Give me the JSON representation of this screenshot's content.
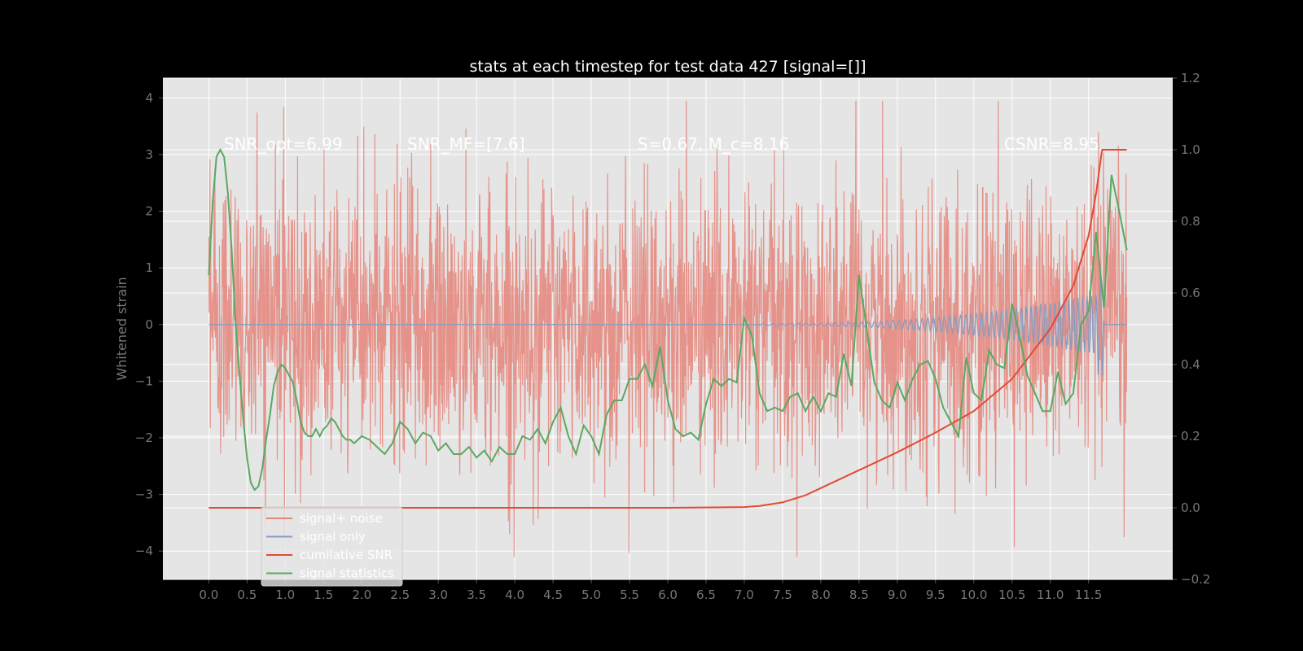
{
  "chart_data": {
    "type": "line",
    "title": "stats at each timestep for test data 427 [signal=[]]",
    "ylabel": "Whitened strain",
    "xlabel": "",
    "xlim": [
      -0.6,
      12.6
    ],
    "ylim_left": [
      -4.5,
      4.35
    ],
    "ylim_right": [
      -0.2,
      1.2
    ],
    "x_ticks": [
      "0.0",
      "0.5",
      "1.0",
      "1.5",
      "2.0",
      "2.5",
      "3.0",
      "3.5",
      "4.0",
      "4.5",
      "5.0",
      "5.5",
      "6.0",
      "6.5",
      "7.0",
      "7.5",
      "8.0",
      "8.5",
      "9.0",
      "9.5",
      "10.0",
      "10.5",
      "11.0",
      "11.5"
    ],
    "y_left_ticks": [
      "4",
      "3",
      "2",
      "1",
      "0",
      "−1",
      "−2",
      "−3",
      "−4"
    ],
    "y_right_ticks": [
      "1.2",
      "1.0",
      "0.8",
      "0.6",
      "0.4",
      "0.2",
      "0.0",
      "−0.2"
    ],
    "grid": true,
    "legend_position": "lower-left",
    "annotations": [
      "SNR_opt=6.99",
      "SNR_MF=[7.6]",
      "S=0.67, M_c=8.16",
      "CSNR=8.95"
    ],
    "series": [
      {
        "name": "signal+ noise",
        "color": "#e5857a",
        "axis": "left",
        "description_range": [
          -4.1,
          3.95
        ],
        "x_range": [
          0.0,
          12.0
        ]
      },
      {
        "name": "signal only",
        "color": "#8a9bbf",
        "axis": "left",
        "x_range": [
          0.0,
          12.0
        ]
      },
      {
        "name": "cumilative SNR",
        "color": "#e24a33",
        "axis": "right",
        "x": [
          0.0,
          6.0,
          7.0,
          7.2,
          7.5,
          7.8,
          8.0,
          8.5,
          9.0,
          9.5,
          10.0,
          10.5,
          11.0,
          11.3,
          11.5,
          11.6,
          11.67,
          11.68,
          12.0
        ],
        "values": [
          0.0,
          0.0,
          0.002,
          0.005,
          0.015,
          0.035,
          0.055,
          0.105,
          0.155,
          0.21,
          0.27,
          0.36,
          0.5,
          0.62,
          0.76,
          0.88,
          0.99,
          1.0,
          1.0
        ]
      },
      {
        "name": "signal statistics",
        "color": "#5aa862",
        "axis": "right",
        "x": [
          0.0,
          0.05,
          0.1,
          0.15,
          0.2,
          0.25,
          0.3,
          0.35,
          0.4,
          0.45,
          0.5,
          0.55,
          0.6,
          0.65,
          0.7,
          0.75,
          0.8,
          0.85,
          0.9,
          0.95,
          1.0,
          1.05,
          1.1,
          1.15,
          1.2,
          1.25,
          1.3,
          1.35,
          1.4,
          1.45,
          1.5,
          1.55,
          1.6,
          1.65,
          1.7,
          1.75,
          1.8,
          1.85,
          1.9,
          1.95,
          2.0,
          2.1,
          2.2,
          2.3,
          2.4,
          2.5,
          2.6,
          2.7,
          2.8,
          2.9,
          3.0,
          3.1,
          3.2,
          3.3,
          3.4,
          3.5,
          3.6,
          3.7,
          3.8,
          3.9,
          4.0,
          4.1,
          4.2,
          4.3,
          4.4,
          4.5,
          4.6,
          4.7,
          4.8,
          4.9,
          5.0,
          5.1,
          5.2,
          5.3,
          5.4,
          5.5,
          5.6,
          5.7,
          5.8,
          5.9,
          6.0,
          6.1,
          6.2,
          6.3,
          6.4,
          6.5,
          6.6,
          6.7,
          6.8,
          6.9,
          7.0,
          7.1,
          7.2,
          7.3,
          7.4,
          7.5,
          7.6,
          7.7,
          7.8,
          7.9,
          8.0,
          8.1,
          8.2,
          8.3,
          8.4,
          8.5,
          8.6,
          8.7,
          8.8,
          8.9,
          9.0,
          9.1,
          9.2,
          9.3,
          9.4,
          9.5,
          9.6,
          9.7,
          9.8,
          9.9,
          10.0,
          10.1,
          10.2,
          10.3,
          10.4,
          10.5,
          10.6,
          10.7,
          10.8,
          10.9,
          11.0,
          11.1,
          11.2,
          11.3,
          11.4,
          11.5,
          11.6,
          11.7,
          11.8,
          11.9,
          12.0
        ],
        "values": [
          0.65,
          0.85,
          0.98,
          1.0,
          0.98,
          0.88,
          0.72,
          0.52,
          0.38,
          0.25,
          0.14,
          0.07,
          0.05,
          0.06,
          0.11,
          0.19,
          0.26,
          0.34,
          0.38,
          0.4,
          0.39,
          0.37,
          0.35,
          0.3,
          0.24,
          0.21,
          0.2,
          0.2,
          0.22,
          0.2,
          0.22,
          0.23,
          0.25,
          0.24,
          0.22,
          0.2,
          0.19,
          0.19,
          0.18,
          0.19,
          0.2,
          0.19,
          0.17,
          0.15,
          0.18,
          0.24,
          0.22,
          0.18,
          0.21,
          0.2,
          0.16,
          0.18,
          0.15,
          0.15,
          0.17,
          0.14,
          0.16,
          0.13,
          0.17,
          0.15,
          0.15,
          0.2,
          0.19,
          0.22,
          0.18,
          0.24,
          0.28,
          0.2,
          0.15,
          0.23,
          0.2,
          0.15,
          0.26,
          0.3,
          0.3,
          0.36,
          0.36,
          0.4,
          0.34,
          0.45,
          0.3,
          0.22,
          0.2,
          0.21,
          0.19,
          0.29,
          0.36,
          0.34,
          0.36,
          0.35,
          0.53,
          0.48,
          0.32,
          0.27,
          0.28,
          0.27,
          0.31,
          0.32,
          0.27,
          0.31,
          0.27,
          0.32,
          0.31,
          0.43,
          0.34,
          0.65,
          0.5,
          0.35,
          0.3,
          0.28,
          0.35,
          0.3,
          0.36,
          0.4,
          0.41,
          0.36,
          0.28,
          0.24,
          0.2,
          0.42,
          0.32,
          0.3,
          0.44,
          0.4,
          0.39,
          0.57,
          0.48,
          0.37,
          0.32,
          0.27,
          0.27,
          0.38,
          0.29,
          0.32,
          0.51,
          0.55,
          0.77,
          0.56,
          0.93,
          0.83,
          0.72
        ]
      }
    ]
  }
}
